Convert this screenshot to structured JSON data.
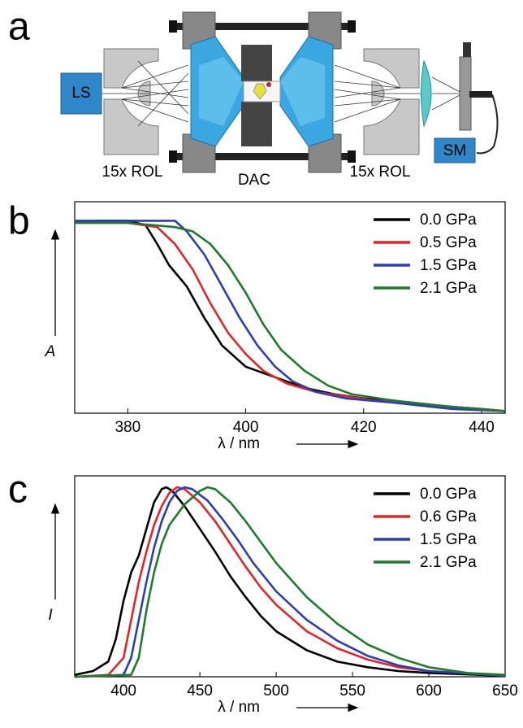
{
  "panel_labels": [
    "a",
    "b",
    "c"
  ],
  "diagram": {
    "labels": [
      "LS",
      "15x ROL",
      "DAC",
      "15x ROL",
      "SM"
    ]
  },
  "chart_data": [
    {
      "type": "line",
      "ylabel": "A",
      "xlabel": "λ / nm",
      "xlim": [
        371,
        444
      ],
      "xticks": [
        380,
        400,
        420,
        440
      ],
      "ylim": [
        0,
        1
      ],
      "legend": "upper right",
      "series": [
        {
          "name": "0.0 GPa",
          "color": "#000000",
          "x": [
            371,
            375,
            380,
            383,
            385,
            387,
            390,
            393,
            396,
            400,
            405,
            410,
            415,
            420,
            425,
            430,
            435,
            440,
            444
          ],
          "values": [
            0.9,
            0.91,
            0.91,
            0.89,
            0.8,
            0.7,
            0.6,
            0.45,
            0.32,
            0.22,
            0.17,
            0.12,
            0.09,
            0.07,
            0.06,
            0.04,
            0.03,
            0.02,
            0.01
          ]
        },
        {
          "name": "0.5 GPa",
          "color": "#e0262b",
          "x": [
            371,
            380,
            385,
            388,
            391,
            394,
            397,
            400,
            403,
            407,
            412,
            417,
            422,
            430,
            440,
            444
          ],
          "values": [
            0.9,
            0.9,
            0.88,
            0.8,
            0.68,
            0.52,
            0.38,
            0.28,
            0.2,
            0.14,
            0.1,
            0.08,
            0.06,
            0.04,
            0.02,
            0.01
          ]
        },
        {
          "name": "1.5 GPa",
          "color": "#2b3fb0",
          "x": [
            371,
            380,
            388,
            390,
            393,
            396,
            399,
            402,
            405,
            408,
            412,
            417,
            425,
            435,
            444
          ],
          "values": [
            0.91,
            0.91,
            0.91,
            0.86,
            0.75,
            0.6,
            0.45,
            0.32,
            0.22,
            0.15,
            0.1,
            0.07,
            0.05,
            0.02,
            0.01
          ]
        },
        {
          "name": "2.1 GPa",
          "color": "#1f7a2e",
          "x": [
            371,
            380,
            388,
            391,
            394,
            397,
            400,
            403,
            406,
            410,
            414,
            418,
            425,
            435,
            444
          ],
          "values": [
            0.9,
            0.9,
            0.88,
            0.86,
            0.8,
            0.7,
            0.57,
            0.42,
            0.3,
            0.2,
            0.13,
            0.09,
            0.06,
            0.03,
            0.01
          ]
        }
      ]
    },
    {
      "type": "line",
      "ylabel": "I",
      "xlabel": "λ / nm",
      "xlim": [
        368,
        650
      ],
      "xticks": [
        400,
        450,
        500,
        550,
        600,
        650
      ],
      "ylim": [
        0,
        1.06
      ],
      "legend": "upper right",
      "series": [
        {
          "name": "0.0 GPa",
          "color": "#000000",
          "x": [
            368,
            380,
            390,
            395,
            400,
            405,
            410,
            415,
            420,
            425,
            428,
            432,
            440,
            450,
            460,
            470,
            480,
            490,
            500,
            520,
            540,
            560,
            580,
            600,
            650
          ],
          "values": [
            0.01,
            0.03,
            0.08,
            0.2,
            0.4,
            0.55,
            0.64,
            0.78,
            0.92,
            0.99,
            1.0,
            0.98,
            0.9,
            0.78,
            0.66,
            0.53,
            0.42,
            0.32,
            0.24,
            0.14,
            0.08,
            0.05,
            0.03,
            0.02,
            0.005
          ]
        },
        {
          "name": "0.6 GPa",
          "color": "#e0262b",
          "x": [
            368,
            390,
            400,
            405,
            410,
            415,
            420,
            425,
            430,
            435,
            440,
            450,
            460,
            470,
            480,
            490,
            500,
            520,
            540,
            560,
            580,
            600,
            650
          ],
          "values": [
            0,
            0.01,
            0.1,
            0.3,
            0.5,
            0.66,
            0.8,
            0.9,
            0.97,
            1.0,
            0.99,
            0.92,
            0.82,
            0.7,
            0.58,
            0.47,
            0.38,
            0.24,
            0.15,
            0.09,
            0.05,
            0.03,
            0.005
          ]
        },
        {
          "name": "1.5 GPa",
          "color": "#2b3fb0",
          "x": [
            368,
            400,
            405,
            410,
            415,
            420,
            425,
            430,
            435,
            440,
            445,
            455,
            465,
            475,
            485,
            500,
            520,
            540,
            560,
            580,
            600,
            650
          ],
          "values": [
            0,
            0.01,
            0.1,
            0.3,
            0.5,
            0.68,
            0.82,
            0.92,
            0.98,
            1.0,
            0.99,
            0.93,
            0.83,
            0.72,
            0.6,
            0.45,
            0.3,
            0.19,
            0.11,
            0.06,
            0.03,
            0.005
          ]
        },
        {
          "name": "2.1 GPa",
          "color": "#1f7a2e",
          "x": [
            368,
            405,
            410,
            415,
            420,
            425,
            430,
            440,
            450,
            455,
            460,
            470,
            480,
            490,
            500,
            520,
            540,
            560,
            580,
            600,
            625,
            650
          ],
          "values": [
            0,
            0.01,
            0.1,
            0.35,
            0.55,
            0.7,
            0.8,
            0.91,
            0.98,
            1.0,
            0.99,
            0.92,
            0.82,
            0.71,
            0.6,
            0.42,
            0.28,
            0.17,
            0.1,
            0.05,
            0.02,
            0.01
          ]
        }
      ]
    }
  ]
}
